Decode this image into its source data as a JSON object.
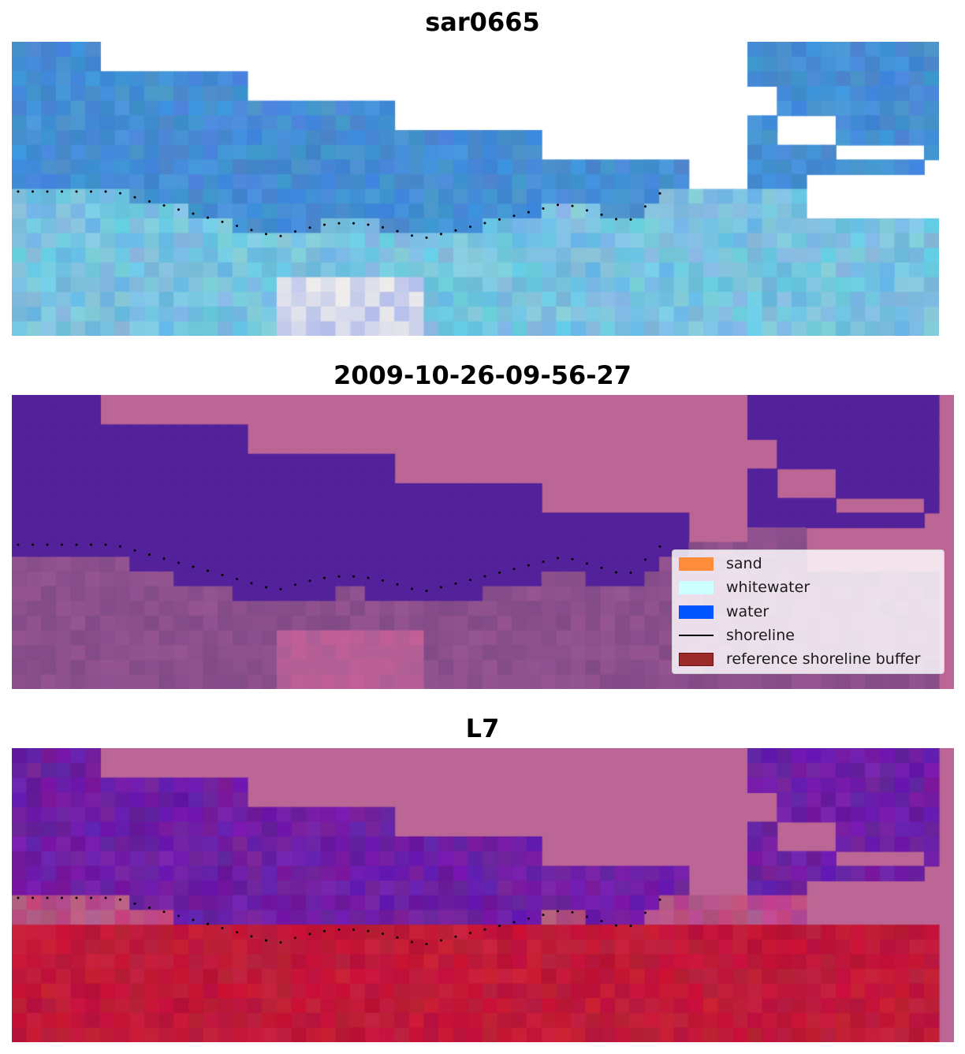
{
  "panels": [
    {
      "title": "sar0665"
    },
    {
      "title": "2009-10-26-09-56-27"
    },
    {
      "title": "L7"
    }
  ],
  "legend": {
    "items": [
      {
        "label": "sand",
        "color": "#ff8c3a"
      },
      {
        "label": "whitewater",
        "color": "#ccffff"
      },
      {
        "label": "water",
        "color": "#0055ff"
      },
      {
        "label": "shoreline",
        "color": "#000000"
      },
      {
        "label": "reference shoreline buffer",
        "color": "#9b2a2a"
      }
    ]
  },
  "colors": {
    "masked_pink": "#bb6694",
    "water_purple": "#53219a",
    "rgb_blue": "#4a8fd0",
    "rgb_cyan": "#7ad0d8",
    "classified_land": "#8a4f8c",
    "index_red": "#b8123a",
    "index_purple": "#6a1fa2"
  }
}
